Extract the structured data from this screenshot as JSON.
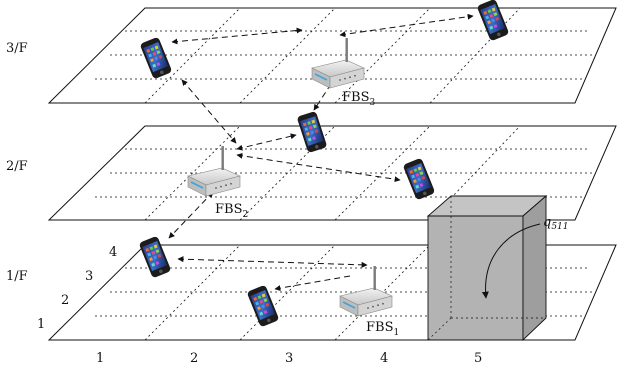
{
  "floors": [
    {
      "label": "3/F"
    },
    {
      "label": "2/F"
    },
    {
      "label": "1/F"
    }
  ],
  "stations": [
    {
      "label": "FBS",
      "sub": "3"
    },
    {
      "label": "FBS",
      "sub": "2"
    },
    {
      "label": "FBS",
      "sub": "1"
    }
  ],
  "x_labels": [
    "1",
    "2",
    "3",
    "4",
    "5"
  ],
  "y_labels": [
    "1",
    "2",
    "3",
    "4"
  ],
  "block": {
    "label": "q",
    "sub": "511",
    "fill": "#b3b3b3"
  },
  "icons": {
    "phone": "smartphone-icon",
    "router": "wifi-router-icon"
  }
}
